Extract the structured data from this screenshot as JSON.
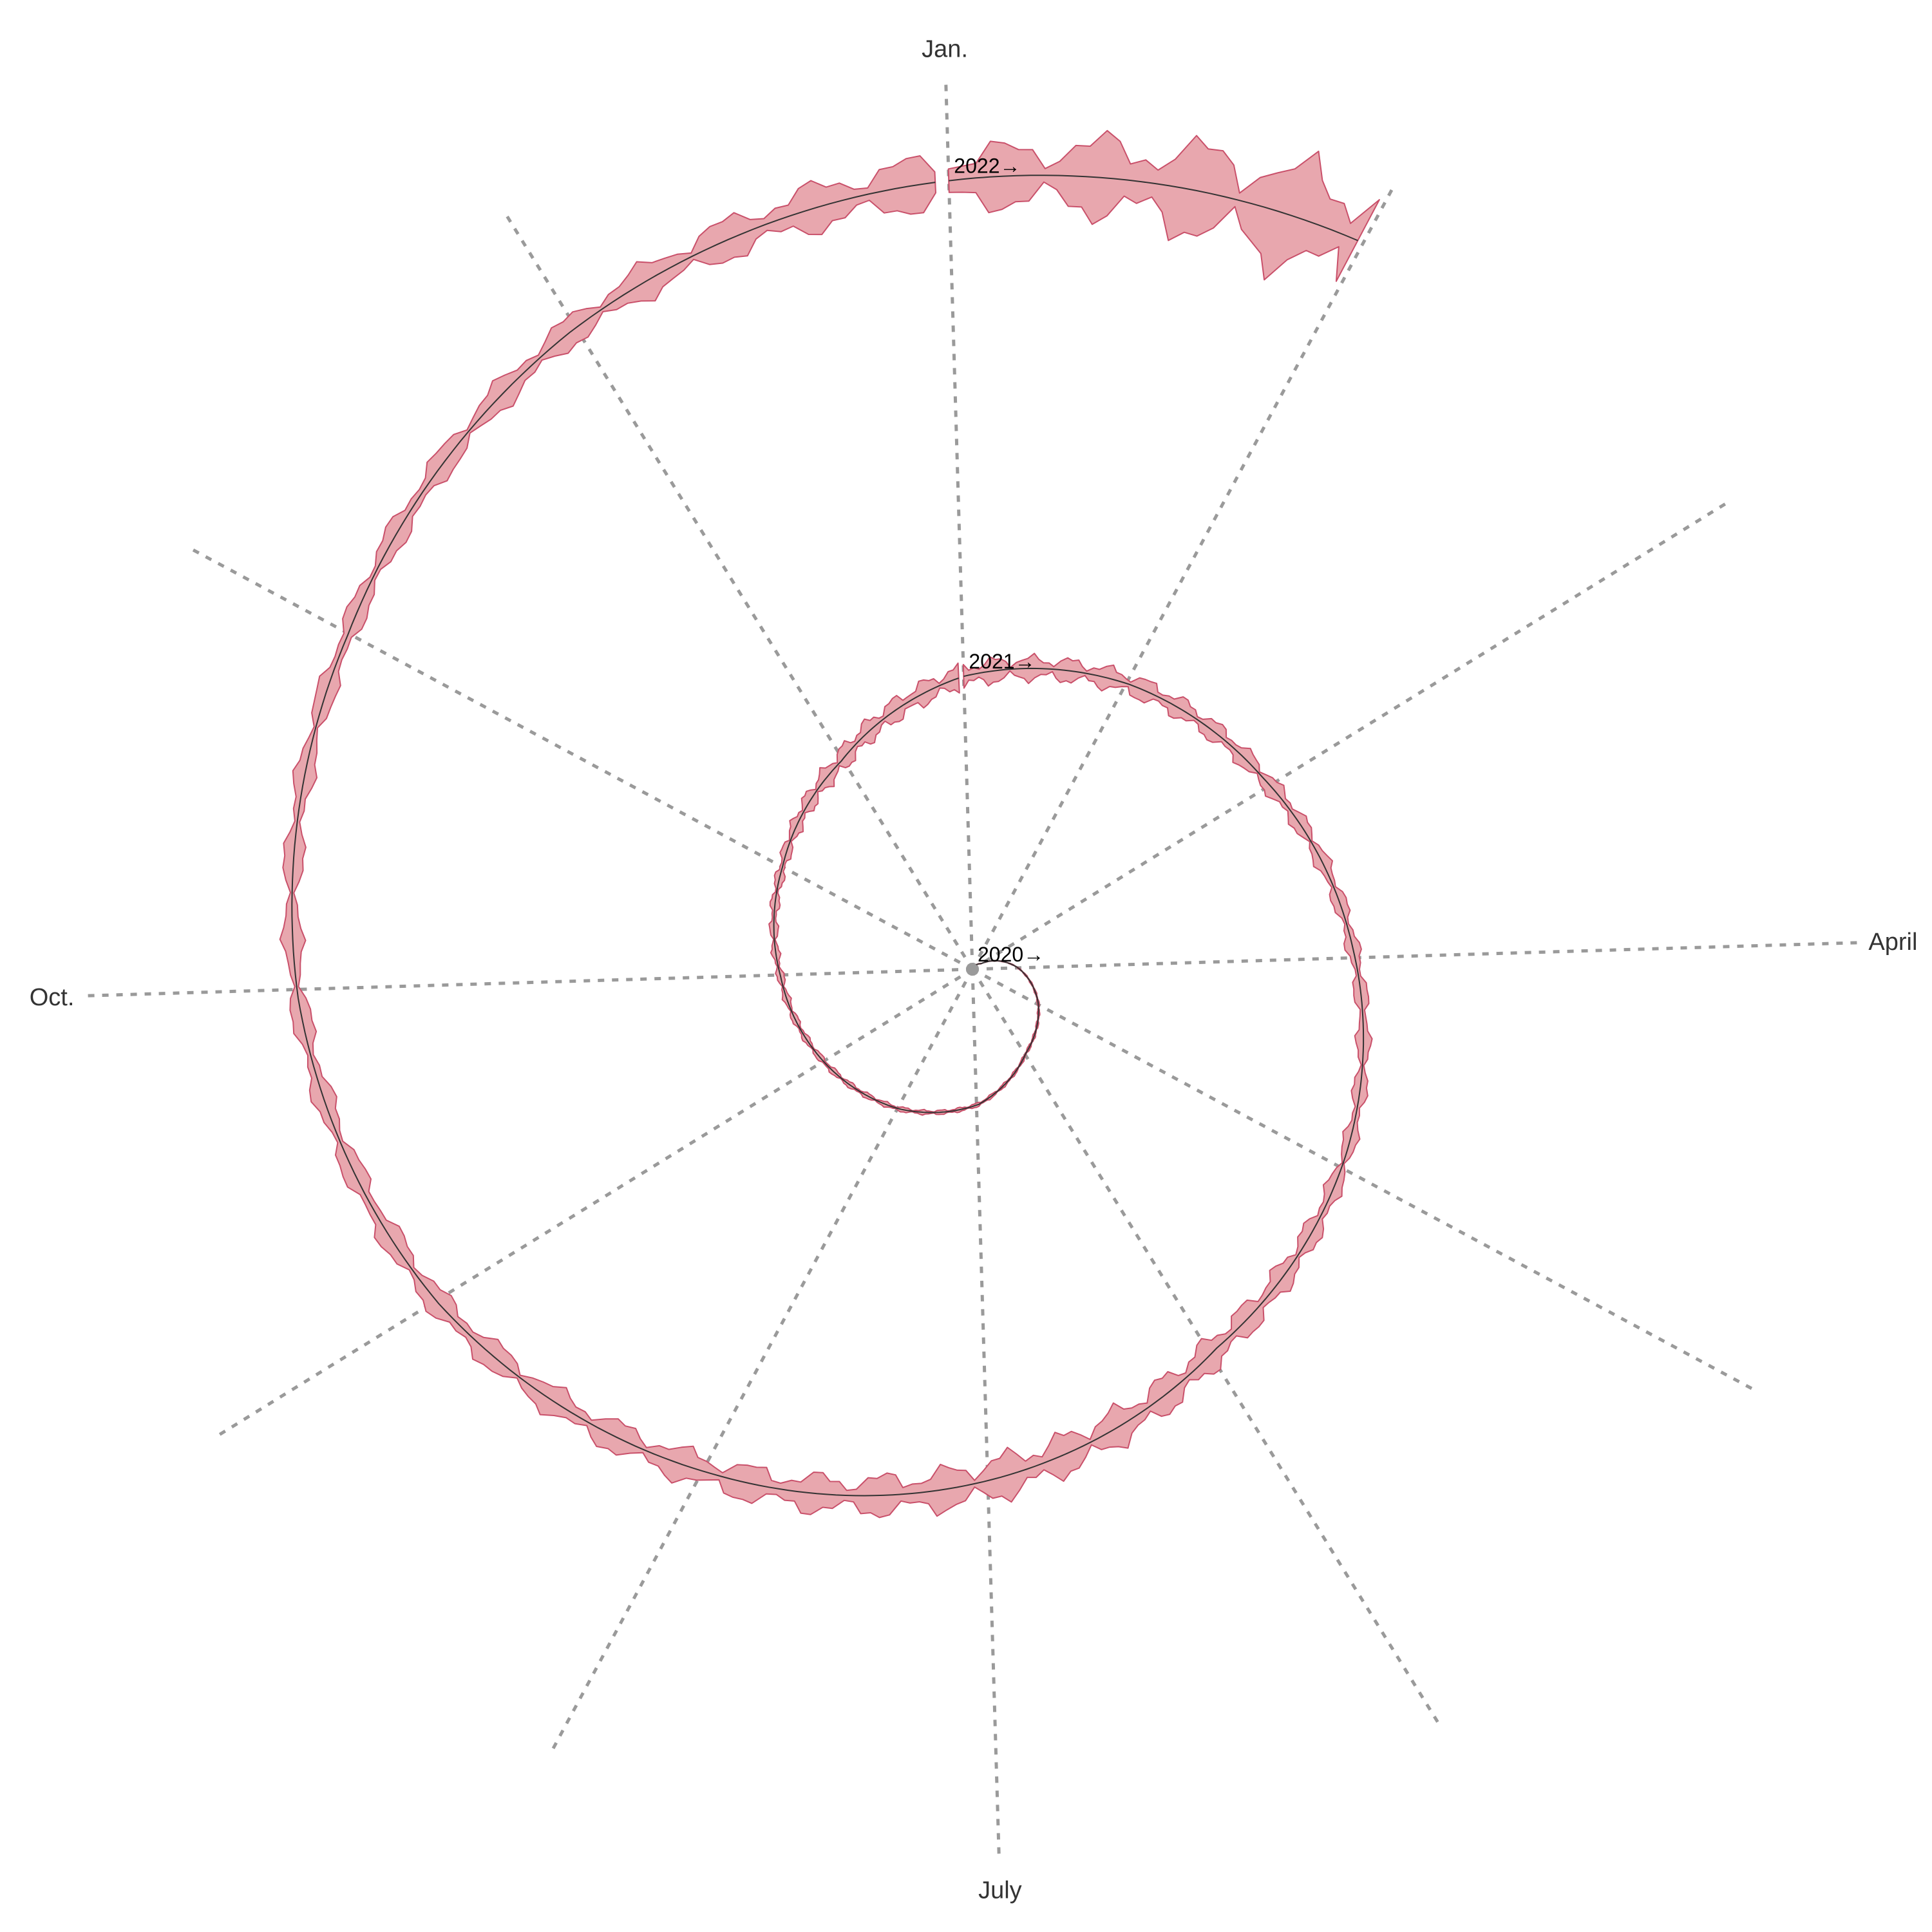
{
  "chart_data": {
    "type": "area",
    "subtype": "spiral",
    "title": "",
    "xlabel": "",
    "ylabel": "",
    "grid": true,
    "legend": "none",
    "colors": {
      "band": "#e8a7ae",
      "band_edge": "#c9506a",
      "trend": "#333333",
      "spoke": "#9a9a9a"
    },
    "month_labels": [
      {
        "month": 1,
        "label": "Jan."
      },
      {
        "month": 4,
        "label": "April"
      },
      {
        "month": 7,
        "label": "July"
      },
      {
        "month": 10,
        "label": "Oct."
      }
    ],
    "year_labels": [
      {
        "year": 2020,
        "label": "2020→"
      },
      {
        "year": 2021,
        "label": "2021→"
      },
      {
        "year": 2022,
        "label": "2022→"
      }
    ],
    "start": "2020-01-22",
    "end": "2022-01-31",
    "series": [
      {
        "name": "",
        "x": [
          "2020-01-22",
          "2020-03-01",
          "2020-04-01",
          "2020-05-01",
          "2020-06-01",
          "2020-07-01",
          "2020-08-01",
          "2020-09-01",
          "2020-10-01",
          "2020-11-01",
          "2020-12-01",
          "2021-01-01",
          "2021-02-01",
          "2021-03-01",
          "2021-04-01",
          "2021-05-01",
          "2021-06-01",
          "2021-07-01",
          "2021-08-01",
          "2021-09-01",
          "2021-10-01",
          "2021-11-01",
          "2021-12-01",
          "2022-01-01",
          "2022-01-31"
        ],
        "trend": [
          0,
          16,
          70,
          115,
          155,
          210,
          245,
          272,
          298,
          335,
          382,
          455,
          505,
          540,
          592,
          648,
          700,
          790,
          882,
          978,
          1048,
          1100,
          1170,
          1225,
          1280
        ],
        "band_width": [
          0,
          2,
          3,
          5,
          6,
          8,
          10,
          12,
          15,
          20,
          40,
          50,
          45,
          35,
          28,
          30,
          60,
          90,
          70,
          50,
          40,
          40,
          55,
          110,
          240
        ]
      }
    ]
  }
}
